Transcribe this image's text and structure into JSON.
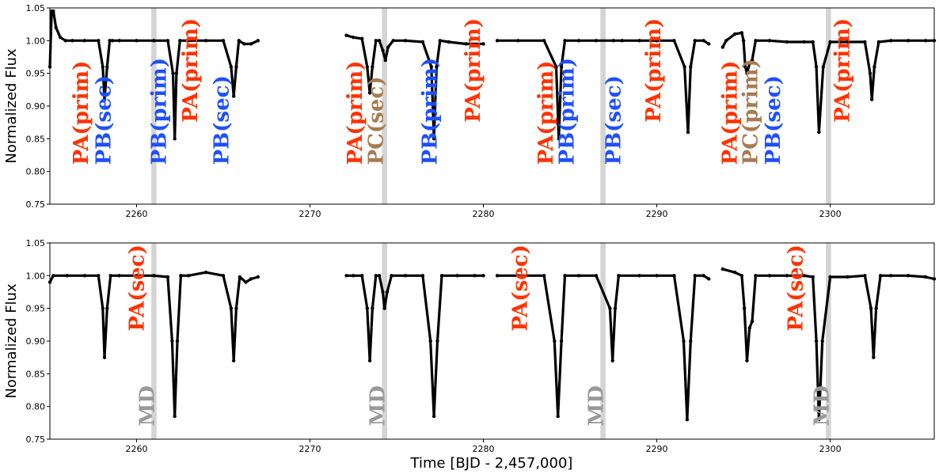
{
  "chart_data": [
    {
      "type": "line",
      "panel": "top",
      "title": "",
      "xlabel": "",
      "ylabel": "Normalized Flux",
      "xlim": [
        2255,
        2306
      ],
      "ylim": [
        0.75,
        1.05
      ],
      "xticks": [
        2260,
        2270,
        2280,
        2290,
        2300
      ],
      "xtick_labels": [
        "2260",
        "2270",
        "2280",
        "2290",
        "2300"
      ],
      "yticks": [
        0.75,
        0.8,
        0.85,
        0.9,
        0.95,
        1.0,
        1.05
      ],
      "ytick_labels": [
        "0.75",
        "0.80",
        "0.85",
        "0.90",
        "0.95",
        "1.00",
        "1.05"
      ],
      "grid": false,
      "shaded_bands": [
        [
          2260.85,
          2261.15
        ],
        [
          2274.15,
          2274.45
        ],
        [
          2286.75,
          2287.05
        ],
        [
          2299.75,
          2300.05
        ]
      ],
      "segments": [
        {
          "x": [
            2255.0,
            2255.1,
            2255.2,
            2255.35,
            2255.6,
            2255.9,
            2256.3,
            2257.0,
            2257.8,
            2258.05,
            2258.15,
            2258.3,
            2258.45,
            2258.6,
            2259.0,
            2260.0,
            2261.0,
            2261.8,
            2262.1,
            2262.2,
            2262.3,
            2262.5,
            2263.0,
            2264.0,
            2265.0,
            2265.45,
            2265.6,
            2265.75,
            2265.9,
            2266.2,
            2266.6,
            2267.0
          ],
          "y": [
            0.96,
            1.045,
            1.045,
            1.02,
            1.005,
            1.0,
            1.0,
            1.0,
            1.0,
            0.96,
            0.91,
            0.96,
            1.0,
            1.0,
            1.0,
            1.0,
            1.0,
            1.0,
            0.95,
            0.85,
            0.95,
            1.0,
            1.0,
            1.0,
            1.0,
            0.96,
            0.915,
            0.96,
            1.0,
            0.995,
            0.995,
            1.0
          ]
        },
        {
          "x": [
            2272.1,
            2272.5,
            2273.0,
            2273.3,
            2273.45,
            2273.6,
            2273.8,
            2274.0,
            2274.2,
            2274.35,
            2274.5,
            2274.8,
            2275.5,
            2276.5,
            2277.0,
            2277.15,
            2277.3,
            2277.5,
            2278.0,
            2279.0,
            2280.0
          ],
          "y": [
            1.008,
            1.005,
            1.003,
            0.96,
            0.92,
            0.96,
            1.0,
            1.0,
            0.985,
            0.97,
            0.99,
            1.0,
            1.0,
            0.998,
            0.96,
            0.85,
            0.96,
            1.0,
            0.998,
            0.995,
            0.995
          ]
        },
        {
          "x": [
            2280.8,
            2282.0,
            2283.5,
            2284.2,
            2284.35,
            2284.5,
            2284.7,
            2285.5,
            2286.5,
            2287.5,
            2288.0,
            2289.0,
            2290.0,
            2291.0,
            2291.6,
            2291.8,
            2291.95,
            2292.2,
            2292.7,
            2293.0
          ],
          "y": [
            1.0,
            1.0,
            1.0,
            0.96,
            0.85,
            0.96,
            1.0,
            1.0,
            1.0,
            1.0,
            1.0,
            1.0,
            1.0,
            1.0,
            0.96,
            0.86,
            0.96,
            1.0,
            1.0,
            0.995
          ]
        },
        {
          "x": [
            2293.8,
            2294.0,
            2294.5,
            2294.9,
            2295.0,
            2295.1,
            2295.2,
            2295.35,
            2295.5,
            2295.7,
            2296.5,
            2297.5,
            2298.5,
            2299.0,
            2299.2,
            2299.35,
            2299.6,
            2300.0,
            2301.0,
            2302.0,
            2302.3,
            2302.4,
            2302.55,
            2302.8,
            2303.5,
            2304.5,
            2305.5,
            2306.0
          ],
          "y": [
            0.99,
            1.0,
            1.01,
            1.012,
            1.0,
            0.96,
            0.95,
            0.965,
            0.97,
            1.0,
            1.0,
            0.998,
            0.998,
            0.998,
            0.96,
            0.86,
            0.96,
            0.998,
            0.998,
            0.998,
            0.95,
            0.91,
            0.96,
            0.998,
            1.0,
            1.0,
            1.0,
            1.0
          ]
        }
      ],
      "annotations": [
        {
          "text": "PA(prim)",
          "x": 2257.2,
          "y": 0.81,
          "color": "#ff3300"
        },
        {
          "text": "PB(sec)",
          "x": 2258.5,
          "y": 0.81,
          "color": "#1f4fff"
        },
        {
          "text": "PB(prim)",
          "x": 2261.7,
          "y": 0.81,
          "color": "#1f4fff"
        },
        {
          "text": "PA(prim)",
          "x": 2263.5,
          "y": 0.875,
          "color": "#ff3300"
        },
        {
          "text": "PB(sec)",
          "x": 2265.3,
          "y": 0.81,
          "color": "#1f4fff"
        },
        {
          "text": "PA(prim)",
          "x": 2273.0,
          "y": 0.81,
          "color": "#ff3300"
        },
        {
          "text": "PC(sec)",
          "x": 2274.2,
          "y": 0.81,
          "color": "#a67c52"
        },
        {
          "text": "PB(prim)",
          "x": 2277.3,
          "y": 0.81,
          "color": "#1f4fff"
        },
        {
          "text": "PA(prim)",
          "x": 2279.8,
          "y": 0.875,
          "color": "#ff3300"
        },
        {
          "text": "PA(prim)",
          "x": 2284.0,
          "y": 0.81,
          "color": "#ff3300"
        },
        {
          "text": "PB(prim)",
          "x": 2285.2,
          "y": 0.81,
          "color": "#1f4fff"
        },
        {
          "text": "PB(sec)",
          "x": 2287.9,
          "y": 0.81,
          "color": "#1f4fff"
        },
        {
          "text": "PA(prim)",
          "x": 2290.2,
          "y": 0.875,
          "color": "#ff3300"
        },
        {
          "text": "PA(prim)",
          "x": 2294.6,
          "y": 0.81,
          "color": "#ff3300"
        },
        {
          "text": "PC(prim)",
          "x": 2295.8,
          "y": 0.81,
          "color": "#a67c52"
        },
        {
          "text": "PB(sec)",
          "x": 2297.1,
          "y": 0.81,
          "color": "#1f4fff"
        },
        {
          "text": "PA(prim)",
          "x": 2301.1,
          "y": 0.875,
          "color": "#ff3300"
        }
      ]
    },
    {
      "type": "line",
      "panel": "bottom",
      "title": "",
      "xlabel": "Time [BJD - 2,457,000]",
      "ylabel": "Normalized Flux",
      "xlim": [
        2255,
        2306
      ],
      "ylim": [
        0.75,
        1.05
      ],
      "xticks": [
        2260,
        2270,
        2280,
        2290,
        2300
      ],
      "xtick_labels": [
        "2260",
        "2270",
        "2280",
        "2290",
        "2300"
      ],
      "yticks": [
        0.75,
        0.8,
        0.85,
        0.9,
        0.95,
        1.0,
        1.05
      ],
      "ytick_labels": [
        "0.75",
        "0.80",
        "0.85",
        "0.90",
        "0.95",
        "1.00",
        "1.05"
      ],
      "grid": false,
      "shaded_bands": [
        [
          2260.85,
          2261.15
        ],
        [
          2274.15,
          2274.45
        ],
        [
          2286.75,
          2287.05
        ],
        [
          2299.75,
          2300.05
        ]
      ],
      "segments": [
        {
          "x": [
            2255.0,
            2255.2,
            2256.0,
            2257.0,
            2257.8,
            2258.05,
            2258.15,
            2258.3,
            2258.5,
            2259.0,
            2260.0,
            2261.0,
            2261.8,
            2262.05,
            2262.2,
            2262.35,
            2262.55,
            2263.0,
            2264.0,
            2265.0,
            2265.45,
            2265.6,
            2265.75,
            2265.95,
            2266.3,
            2266.6,
            2267.0
          ],
          "y": [
            0.99,
            1.0,
            1.0,
            1.0,
            1.0,
            0.95,
            0.875,
            0.95,
            1.0,
            1.0,
            1.0,
            1.0,
            0.998,
            0.9,
            0.785,
            0.9,
            1.0,
            1.0,
            1.005,
            1.0,
            0.95,
            0.87,
            0.95,
            0.998,
            0.99,
            0.995,
            0.998
          ]
        },
        {
          "x": [
            2272.1,
            2272.5,
            2273.0,
            2273.3,
            2273.45,
            2273.6,
            2273.8,
            2274.0,
            2274.2,
            2274.3,
            2274.45,
            2274.7,
            2275.5,
            2276.5,
            2276.95,
            2277.15,
            2277.35,
            2277.6,
            2278.5,
            2279.5,
            2280.0
          ],
          "y": [
            1.0,
            1.0,
            1.0,
            0.95,
            0.87,
            0.95,
            1.0,
            1.0,
            0.975,
            0.95,
            0.975,
            1.0,
            1.0,
            1.0,
            0.9,
            0.785,
            0.9,
            1.0,
            1.0,
            1.0,
            1.0
          ]
        },
        {
          "x": [
            2280.8,
            2282.0,
            2283.5,
            2284.1,
            2284.3,
            2284.5,
            2284.7,
            2285.5,
            2286.5,
            2287.3,
            2287.45,
            2287.6,
            2287.8,
            2289.0,
            2290.0,
            2291.0,
            2291.55,
            2291.75,
            2291.95,
            2292.2,
            2292.7,
            2293.0
          ],
          "y": [
            1.0,
            1.0,
            1.0,
            0.9,
            0.785,
            0.9,
            1.0,
            1.0,
            1.0,
            0.95,
            0.87,
            0.95,
            1.0,
            1.0,
            1.0,
            1.0,
            0.9,
            0.78,
            0.9,
            1.0,
            1.0,
            0.995
          ]
        },
        {
          "x": [
            2293.8,
            2294.5,
            2294.9,
            2295.05,
            2295.2,
            2295.35,
            2295.5,
            2295.7,
            2296.5,
            2297.5,
            2298.5,
            2299.0,
            2299.2,
            2299.35,
            2299.55,
            2300.0,
            2301.0,
            2302.0,
            2302.35,
            2302.5,
            2302.65,
            2302.9,
            2303.5,
            2304.5,
            2305.5,
            2306.0
          ],
          "y": [
            1.01,
            1.005,
            1.0,
            0.95,
            0.87,
            0.92,
            0.93,
            1.0,
            1.0,
            1.0,
            1.0,
            0.998,
            0.9,
            0.78,
            0.9,
            0.998,
            0.998,
            1.0,
            0.95,
            0.875,
            0.95,
            1.0,
            1.0,
            1.0,
            0.998,
            0.995
          ]
        }
      ],
      "annotations": [
        {
          "text": "PA(sec)",
          "x": 2260.4,
          "y": 0.915,
          "color": "#ff3300"
        },
        {
          "text": "MD",
          "x": 2261.0,
          "y": 0.77,
          "color": "#999999"
        },
        {
          "text": "MD",
          "x": 2274.3,
          "y": 0.77,
          "color": "#999999"
        },
        {
          "text": "PA(sec)",
          "x": 2282.5,
          "y": 0.915,
          "color": "#ff3300"
        },
        {
          "text": "MD",
          "x": 2286.9,
          "y": 0.77,
          "color": "#999999"
        },
        {
          "text": "PA(sec)",
          "x": 2298.4,
          "y": 0.915,
          "color": "#ff3300"
        },
        {
          "text": "MD",
          "x": 2299.9,
          "y": 0.77,
          "color": "#999999"
        }
      ]
    }
  ]
}
